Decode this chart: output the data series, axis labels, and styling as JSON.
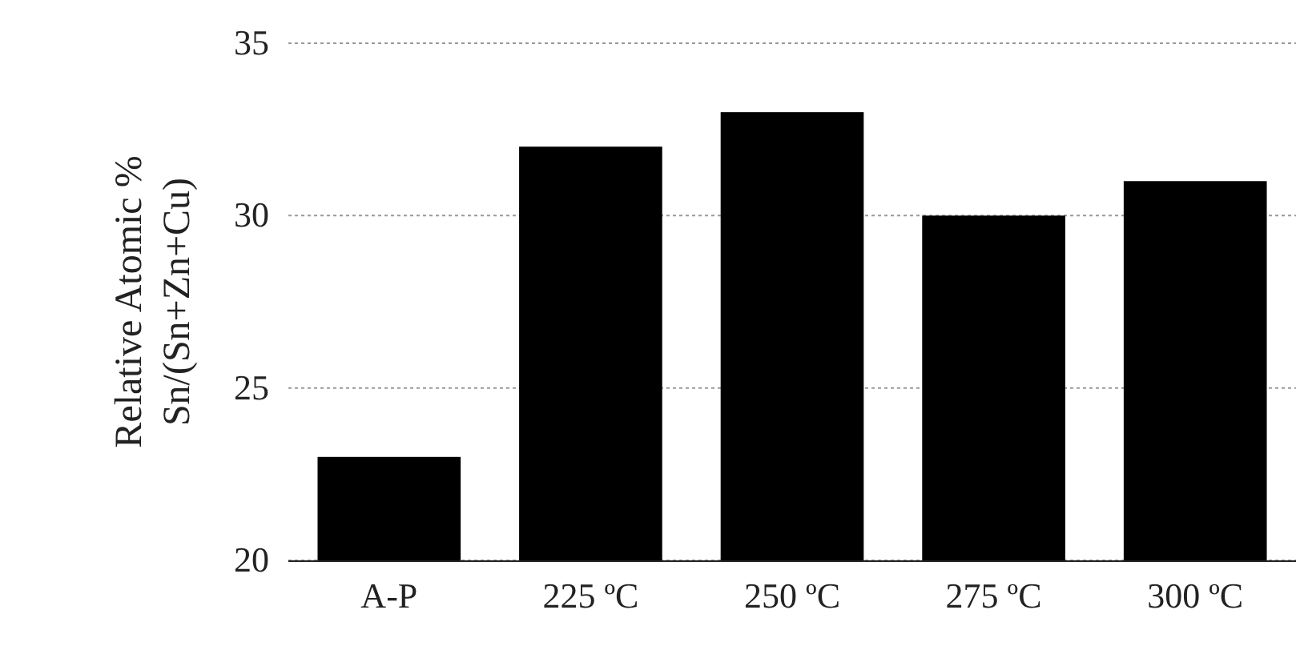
{
  "chart_data": {
    "type": "bar",
    "ylabel": "Relative Atomic %\nSn/(Sn+Zn+Cu)",
    "categories": [
      "A-P",
      "225 ºC",
      "250 ºC",
      "275 ºC",
      "300 ºC"
    ],
    "values": [
      23,
      32,
      33,
      30,
      31
    ],
    "color": "#000000",
    "ylim": [
      20,
      35
    ],
    "yticks": [
      20,
      25,
      30,
      35
    ],
    "grid": "y"
  }
}
